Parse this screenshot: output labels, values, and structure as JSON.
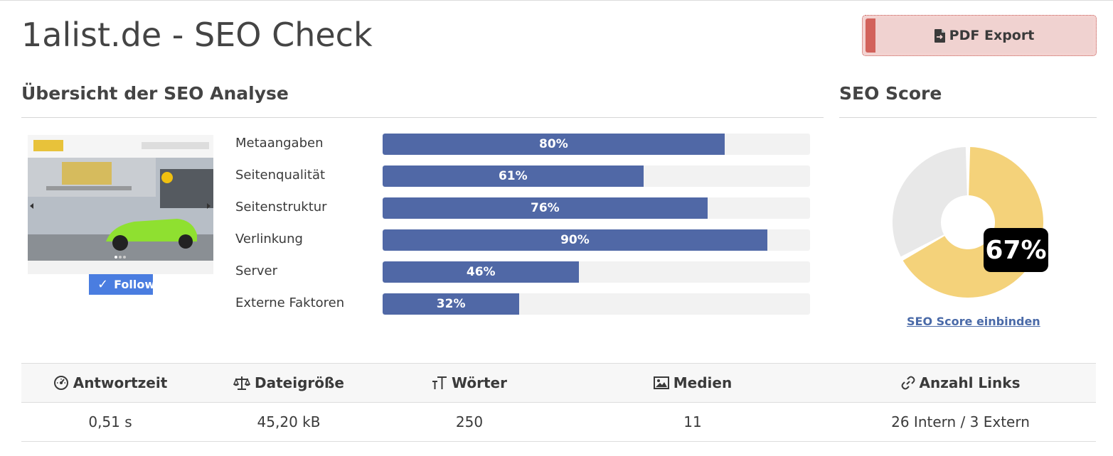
{
  "header": {
    "title": "1alist.de - SEO Check",
    "pdf_export_label": "PDF Export"
  },
  "analysis": {
    "section_title": "Übersicht der SEO Analyse",
    "follow_label": "Follow",
    "bars": [
      {
        "label": "Metaangaben",
        "value": 80,
        "value_label": "80%"
      },
      {
        "label": "Seitenqualität",
        "value": 61,
        "value_label": "61%"
      },
      {
        "label": "Seitenstruktur",
        "value": 76,
        "value_label": "76%"
      },
      {
        "label": "Verlinkung",
        "value": 90,
        "value_label": "90%"
      },
      {
        "label": "Server",
        "value": 46,
        "value_label": "46%"
      },
      {
        "label": "Externe Faktoren",
        "value": 32,
        "value_label": "32%"
      }
    ],
    "bar_color": "#5068a6",
    "track_color": "#f2f2f2"
  },
  "score": {
    "section_title": "SEO Score",
    "value": 67,
    "value_label": "67%",
    "embed_link": "SEO Score einbinden",
    "fill_color": "#f4d27a",
    "rest_color": "#e8e8e8"
  },
  "stats": {
    "headers": [
      {
        "label": "Antwortzeit",
        "icon": "gauge-icon"
      },
      {
        "label": "Dateigröße",
        "icon": "scale-icon"
      },
      {
        "label": "Wörter",
        "icon": "text-size-icon"
      },
      {
        "label": "Medien",
        "icon": "image-icon"
      },
      {
        "label": "Anzahl Links",
        "icon": "link-icon"
      }
    ],
    "values": [
      "0,51 s",
      "45,20 kB",
      "250",
      "11",
      "26 Intern / 3 Extern"
    ]
  }
}
